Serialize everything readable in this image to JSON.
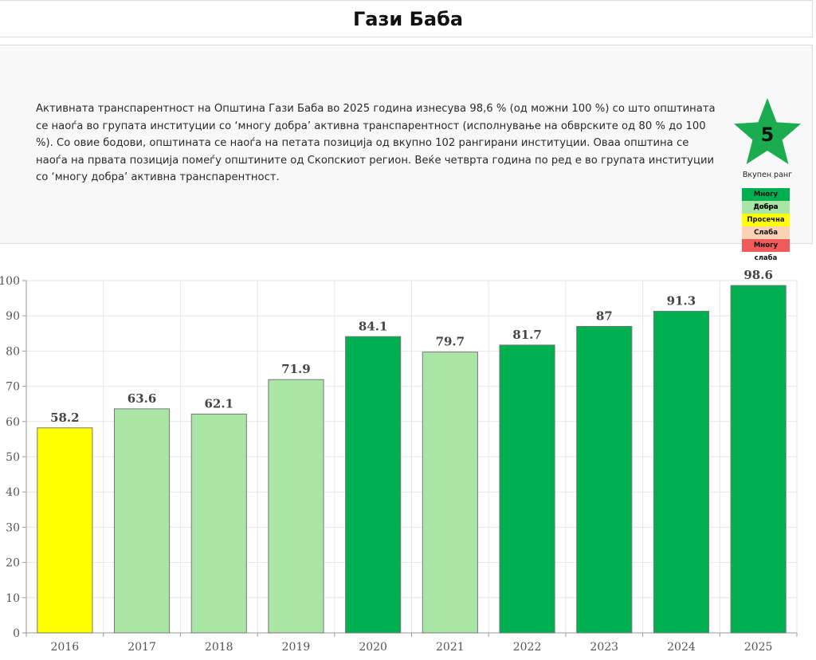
{
  "page": {
    "title": "Гази Баба",
    "description": "Активната транспарентност на Општина Гази Баба во 2025 година изнесува 98,6 % (од можни 100 %) со што општината се наоѓа во групата институции со ‘многу добра’ активна транспарентност (исполнување на обврските од 80 % до 100 %). Со овие бодови, општината се наоѓа на петата позиција од вкупно 102 рангирани институции. Оваа општина се наоѓа на првата позиција помеѓу општините од Скопскиот регион. Веќе четврта година по ред е во групата институции со ‘многу добра’ активна транспарентност."
  },
  "rank": {
    "value": "5",
    "caption": "Вкупен ранг",
    "star_color": "#1aac4e",
    "legend": [
      {
        "label": "Многу добра",
        "color": "#00b050"
      },
      {
        "label": "Добра",
        "color": "#a9e5a4"
      },
      {
        "label": "Просечна",
        "color": "#ffff00"
      },
      {
        "label": "Слаба",
        "color": "#fbd2b4"
      },
      {
        "label": "Многу слаба",
        "color": "#f05a5a"
      }
    ]
  },
  "chart_data": {
    "type": "bar",
    "title": "",
    "xlabel": "",
    "ylabel": "",
    "ylim": [
      0,
      100
    ],
    "yticks": [
      0,
      10,
      20,
      30,
      40,
      50,
      60,
      70,
      80,
      90,
      100
    ],
    "grid": true,
    "categories": [
      "2016",
      "2017",
      "2018",
      "2019",
      "2020",
      "2021",
      "2022",
      "2023",
      "2024",
      "2025"
    ],
    "values": [
      58.2,
      63.6,
      62.1,
      71.9,
      84.1,
      79.7,
      81.7,
      87,
      91.3,
      98.6
    ],
    "value_labels": [
      "58.2",
      "63.6",
      "62.1",
      "71.9",
      "84.1",
      "79.7",
      "81.7",
      "87",
      "91.3",
      "98.6"
    ],
    "colors": [
      "#ffff00",
      "#a9e5a4",
      "#a9e5a4",
      "#a9e5a4",
      "#00b050",
      "#a9e5a4",
      "#00b050",
      "#00b050",
      "#00b050",
      "#00b050"
    ]
  }
}
